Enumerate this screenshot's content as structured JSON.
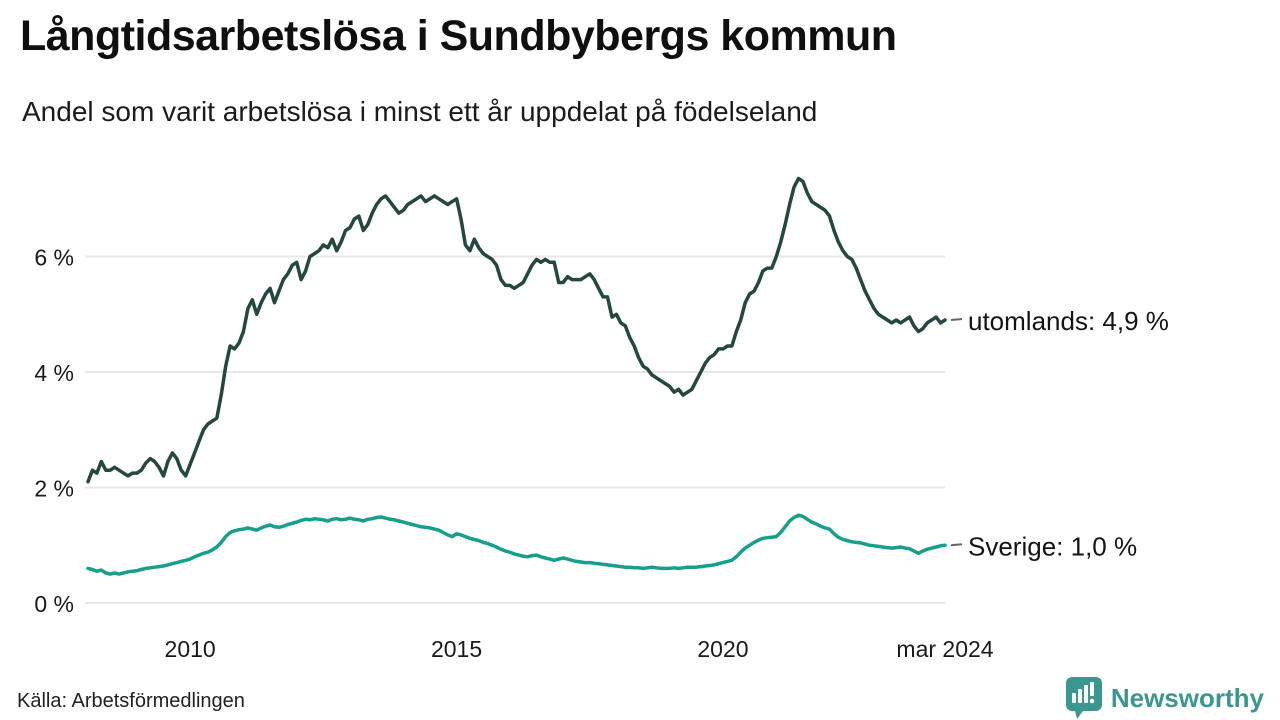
{
  "header": {
    "title": "Långtidsarbetslösa i Sundbybergs kommun",
    "subtitle": "Andel som varit arbetslösa i minst ett år uppdelat på födelseland"
  },
  "footer": {
    "source": "Källa: Arbetsförmedlingen",
    "brand_name": "Newsworthy",
    "brand_color": "#3b978d",
    "brand_icon": "newsworthy-pin-barchart-icon"
  },
  "colors": {
    "grid": "#e8e8e8",
    "axis_text": "#1a1a1a",
    "leader_dash": "#666666"
  },
  "chart_data": {
    "type": "line",
    "title": "Långtidsarbetslösa i Sundbybergs kommun",
    "subtitle": "Andel som varit arbetslösa i minst ett år uppdelat på födelseland",
    "x_unit": "month",
    "x_start_label": "2008-02",
    "x_end_label": "2024-03",
    "x_start": 2008.083,
    "x_end": 2024.167,
    "ylim": [
      0,
      7.6
    ],
    "grid": true,
    "legend_position": "right-end-labels",
    "y_ticks": [
      {
        "label": "0 %",
        "value": 0
      },
      {
        "label": "2 %",
        "value": 2
      },
      {
        "label": "4 %",
        "value": 4
      },
      {
        "label": "6 %",
        "value": 6
      }
    ],
    "x_ticks": [
      {
        "label": "2010",
        "year": 2010
      },
      {
        "label": "2015",
        "year": 2015
      },
      {
        "label": "2020",
        "year": 2020
      },
      {
        "label": "mar 2024",
        "year": 2024.167
      }
    ],
    "series": [
      {
        "name": "utomlands",
        "label": "utomlands: 4,9 %",
        "last_value": 4.9,
        "color": "#24473f",
        "values": [
          2.1,
          2.3,
          2.25,
          2.45,
          2.3,
          2.3,
          2.35,
          2.3,
          2.25,
          2.2,
          2.25,
          2.25,
          2.3,
          2.42,
          2.5,
          2.45,
          2.35,
          2.2,
          2.45,
          2.6,
          2.5,
          2.3,
          2.2,
          2.4,
          2.6,
          2.8,
          3.0,
          3.1,
          3.15,
          3.2,
          3.6,
          4.1,
          4.45,
          4.4,
          4.5,
          4.7,
          5.1,
          5.25,
          5.0,
          5.2,
          5.35,
          5.45,
          5.2,
          5.4,
          5.6,
          5.7,
          5.85,
          5.9,
          5.6,
          5.75,
          6.0,
          6.05,
          6.1,
          6.2,
          6.15,
          6.3,
          6.1,
          6.25,
          6.45,
          6.5,
          6.65,
          6.7,
          6.45,
          6.55,
          6.75,
          6.9,
          7.0,
          7.05,
          6.95,
          6.85,
          6.75,
          6.8,
          6.9,
          6.95,
          7.0,
          7.05,
          6.95,
          7.0,
          7.05,
          7.0,
          6.95,
          6.9,
          6.95,
          7.0,
          6.65,
          6.2,
          6.1,
          6.3,
          6.15,
          6.05,
          6.0,
          5.95,
          5.85,
          5.6,
          5.5,
          5.5,
          5.45,
          5.5,
          5.55,
          5.7,
          5.85,
          5.95,
          5.9,
          5.95,
          5.9,
          5.9,
          5.55,
          5.55,
          5.65,
          5.6,
          5.6,
          5.6,
          5.65,
          5.7,
          5.6,
          5.45,
          5.3,
          5.3,
          4.95,
          5.0,
          4.85,
          4.8,
          4.6,
          4.45,
          4.25,
          4.1,
          4.05,
          3.95,
          3.9,
          3.85,
          3.8,
          3.75,
          3.65,
          3.7,
          3.6,
          3.65,
          3.7,
          3.85,
          4.0,
          4.15,
          4.25,
          4.3,
          4.4,
          4.4,
          4.45,
          4.45,
          4.7,
          4.9,
          5.2,
          5.35,
          5.4,
          5.55,
          5.75,
          5.8,
          5.8,
          6.0,
          6.25,
          6.55,
          6.9,
          7.2,
          7.35,
          7.3,
          7.1,
          6.95,
          6.9,
          6.85,
          6.8,
          6.7,
          6.45,
          6.25,
          6.1,
          6.0,
          5.95,
          5.8,
          5.6,
          5.4,
          5.25,
          5.1,
          5.0,
          4.95,
          4.9,
          4.85,
          4.9,
          4.85,
          4.9,
          4.95,
          4.8,
          4.7,
          4.75,
          4.85,
          4.9,
          4.95,
          4.85,
          4.9
        ]
      },
      {
        "name": "Sverige",
        "label": "Sverige: 1,0 %",
        "last_value": 1.0,
        "color": "#16a08c",
        "values": [
          0.6,
          0.58,
          0.55,
          0.57,
          0.52,
          0.5,
          0.52,
          0.5,
          0.52,
          0.54,
          0.55,
          0.56,
          0.58,
          0.6,
          0.61,
          0.62,
          0.63,
          0.64,
          0.66,
          0.68,
          0.7,
          0.72,
          0.74,
          0.76,
          0.8,
          0.83,
          0.86,
          0.88,
          0.92,
          0.97,
          1.05,
          1.15,
          1.22,
          1.25,
          1.27,
          1.28,
          1.3,
          1.28,
          1.26,
          1.3,
          1.33,
          1.35,
          1.32,
          1.31,
          1.33,
          1.36,
          1.38,
          1.4,
          1.43,
          1.45,
          1.44,
          1.46,
          1.45,
          1.44,
          1.42,
          1.45,
          1.46,
          1.44,
          1.45,
          1.47,
          1.45,
          1.44,
          1.42,
          1.45,
          1.46,
          1.48,
          1.49,
          1.47,
          1.45,
          1.44,
          1.42,
          1.4,
          1.38,
          1.36,
          1.34,
          1.32,
          1.31,
          1.3,
          1.28,
          1.26,
          1.22,
          1.18,
          1.15,
          1.2,
          1.18,
          1.15,
          1.12,
          1.1,
          1.08,
          1.05,
          1.03,
          1.0,
          0.97,
          0.93,
          0.9,
          0.88,
          0.85,
          0.83,
          0.81,
          0.8,
          0.82,
          0.83,
          0.8,
          0.78,
          0.76,
          0.74,
          0.76,
          0.78,
          0.76,
          0.74,
          0.72,
          0.71,
          0.7,
          0.7,
          0.69,
          0.68,
          0.67,
          0.66,
          0.65,
          0.64,
          0.63,
          0.62,
          0.62,
          0.61,
          0.61,
          0.6,
          0.61,
          0.62,
          0.61,
          0.6,
          0.6,
          0.6,
          0.61,
          0.6,
          0.61,
          0.62,
          0.62,
          0.62,
          0.63,
          0.64,
          0.65,
          0.66,
          0.68,
          0.7,
          0.72,
          0.74,
          0.8,
          0.88,
          0.95,
          1.0,
          1.05,
          1.09,
          1.12,
          1.13,
          1.14,
          1.15,
          1.22,
          1.32,
          1.42,
          1.48,
          1.52,
          1.5,
          1.45,
          1.4,
          1.37,
          1.33,
          1.3,
          1.28,
          1.2,
          1.14,
          1.1,
          1.08,
          1.06,
          1.05,
          1.04,
          1.02,
          1.0,
          0.99,
          0.98,
          0.97,
          0.96,
          0.95,
          0.96,
          0.97,
          0.95,
          0.94,
          0.9,
          0.86,
          0.9,
          0.93,
          0.95,
          0.97,
          0.99,
          1.0
        ]
      }
    ]
  }
}
